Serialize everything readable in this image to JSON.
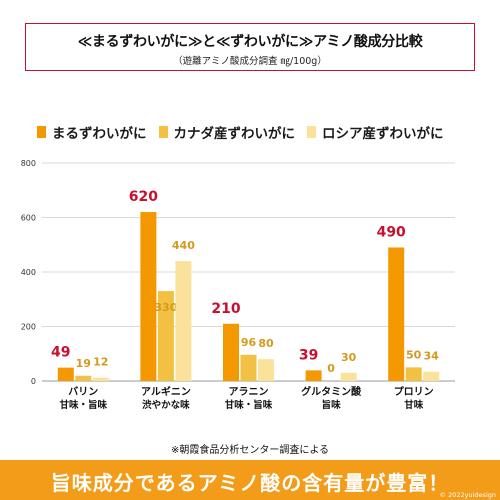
{
  "title_main": "≪まるずわいがに≫と≪ずわいがに≫アミノ酸成分比較",
  "title_sub": "（遊離アミノ酸成分調査 ㎎/100g）",
  "footnote": "※朝霞食品分析センター調査による",
  "banner_text": "旨味成分であるアミノ酸の含有量が豊富！",
  "copyright": "© 2022yuidesign",
  "colors": {
    "series1": "#f39800",
    "series2": "#f2c144",
    "series3": "#fbe29b",
    "label1": "#c8102e",
    "label23": "#d49a1e",
    "grid": "#d9d9d9",
    "axis_text": "#333333"
  },
  "chart_data": {
    "type": "bar",
    "categories": [
      "バリン",
      "アルギニン",
      "アラニン",
      "グルタミン酸",
      "プロリン"
    ],
    "category_sublabels": [
      "甘味・旨味",
      "渋やかな味",
      "甘味・旨味",
      "旨味",
      "甘味"
    ],
    "series": [
      {
        "name": "まるずわいがに",
        "values": [
          49,
          620,
          210,
          39,
          490
        ]
      },
      {
        "name": "カナダ産ずわいがに",
        "values": [
          19,
          330,
          96,
          0,
          50
        ]
      },
      {
        "name": "ロシア産ずわいがに",
        "values": [
          12,
          440,
          80,
          30,
          34
        ]
      }
    ],
    "ylim": [
      0,
      800
    ],
    "yticks": [
      0,
      200,
      400,
      600,
      800
    ],
    "grid": true,
    "legend_position": "top"
  }
}
